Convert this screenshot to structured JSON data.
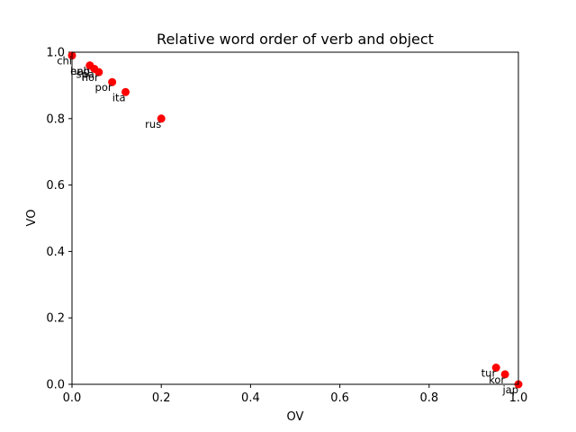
{
  "chart_data": {
    "type": "scatter",
    "title": "Relative word order of verb and object",
    "xlabel": "OV",
    "ylabel": "VO",
    "xlim": [
      0.0,
      1.0
    ],
    "ylim": [
      0.0,
      1.0
    ],
    "xticks": [
      "0.0",
      "0.2",
      "0.4",
      "0.6",
      "0.8",
      "1.0"
    ],
    "yticks": [
      "0.0",
      "0.2",
      "0.4",
      "0.6",
      "0.8",
      "1.0"
    ],
    "grid": false,
    "marker_color": "#ff0000",
    "points": [
      {
        "label": "chi",
        "x": 0.0,
        "y": 0.99
      },
      {
        "label": "heb",
        "x": 0.04,
        "y": 0.96
      },
      {
        "label": "eng",
        "x": 0.04,
        "y": 0.96
      },
      {
        "label": "spa",
        "x": 0.05,
        "y": 0.95
      },
      {
        "label": "nor",
        "x": 0.06,
        "y": 0.94
      },
      {
        "label": "por",
        "x": 0.09,
        "y": 0.91
      },
      {
        "label": "ita",
        "x": 0.12,
        "y": 0.88
      },
      {
        "label": "rus",
        "x": 0.2,
        "y": 0.8
      },
      {
        "label": "tur",
        "x": 0.95,
        "y": 0.05
      },
      {
        "label": "kor",
        "x": 0.97,
        "y": 0.03
      },
      {
        "label": "jap",
        "x": 1.0,
        "y": 0.0
      }
    ]
  }
}
